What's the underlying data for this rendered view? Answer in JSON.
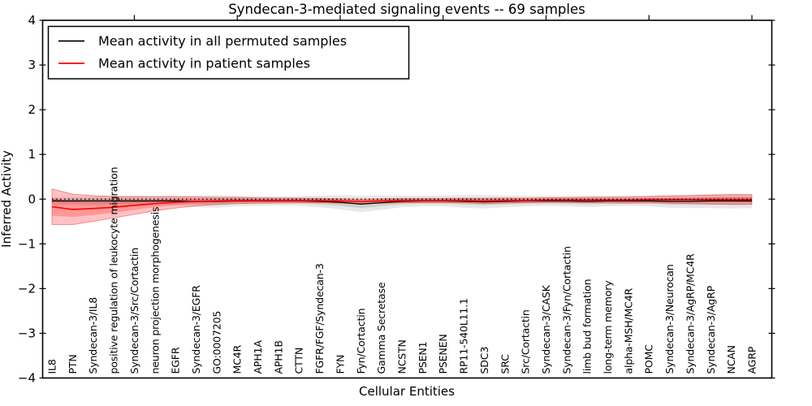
{
  "title": "Syndecan-3-mediated signaling events -- 69 samples",
  "legend": {
    "permuted_label": "Mean activity in all permuted samples",
    "patient_label": "Mean activity in patient samples"
  },
  "axes": {
    "ylabel": "Inferred Activity",
    "xlabel": "Cellular Entities",
    "yticks": [
      4,
      3,
      2,
      1,
      0,
      -1,
      -2,
      -3,
      -4
    ],
    "ylim": [
      -4,
      4
    ],
    "x_tick_indices": [
      4,
      9,
      14,
      19,
      24,
      29,
      34
    ]
  },
  "colors": {
    "patient_line": "#ff0000",
    "permuted_line": "#000000",
    "patient_band_outer": "rgba(255,0,0,0.24)",
    "patient_band_inner": "rgba(255,0,0,0.22)",
    "patient_band_edge": "rgba(225,40,40,0.55)",
    "permuted_band_outer": "rgba(0,0,0,0.09)",
    "permuted_band_inner": "rgba(0,0,0,0.11)",
    "reference_line": "#000000",
    "background": "#ffffff"
  },
  "chart_data": {
    "type": "line",
    "title": "Syndecan-3-mediated signaling events -- 69 samples",
    "xlabel": "Cellular Entities",
    "ylabel": "Inferred Activity",
    "ylim": [
      -4,
      4
    ],
    "grid": false,
    "legend_position": "upper left",
    "reference_line": 0,
    "categories": [
      "IL8",
      "PTN",
      "Syndecan-3/IL8",
      "positive regulation of leukocyte migration",
      "Syndecan-3/Src/Cortactin",
      "neuron projection morphogenesis",
      "EGFR",
      "Syndecan-3/EGFR",
      "GO:0007205",
      "MC4R",
      "APH1A",
      "APH1B",
      "CTTN",
      "FGFR/FGF/Syndecan-3",
      "FYN",
      "Fyn/Cortactin",
      "Gamma Secretase",
      "NCSTN",
      "PSEN1",
      "PSENEN",
      "RP11-540L11.1",
      "SDC3",
      "SRC",
      "Src/Cortactin",
      "Syndecan-3/CASK",
      "Syndecan-3/Fyn/Cortactin",
      "limb bud formation",
      "long-term memory",
      "alpha-MSH/MC4R",
      "POMC",
      "Syndecan-3/Neurocan",
      "Syndecan-3/AgRP/MC4R",
      "Syndecan-3/AgRP",
      "NCAN",
      "AGRP"
    ],
    "series": [
      {
        "name": "Mean activity in all permuted samples",
        "color": "#000000",
        "values": [
          -0.04,
          -0.04,
          -0.04,
          -0.04,
          -0.04,
          -0.04,
          -0.04,
          -0.05,
          -0.05,
          -0.04,
          -0.04,
          -0.04,
          -0.04,
          -0.05,
          -0.07,
          -0.11,
          -0.08,
          -0.05,
          -0.04,
          -0.04,
          -0.05,
          -0.06,
          -0.05,
          -0.04,
          -0.04,
          -0.04,
          -0.05,
          -0.04,
          -0.04,
          -0.04,
          -0.05,
          -0.05,
          -0.04,
          -0.04,
          -0.04
        ],
        "std": [
          0.04,
          0.045,
          0.05,
          0.05,
          0.055,
          0.05,
          0.05,
          0.065,
          0.07,
          0.06,
          0.055,
          0.05,
          0.055,
          0.065,
          0.08,
          0.09,
          0.08,
          0.065,
          0.06,
          0.06,
          0.07,
          0.075,
          0.065,
          0.06,
          0.055,
          0.06,
          0.065,
          0.06,
          0.055,
          0.06,
          0.07,
          0.075,
          0.08,
          0.085,
          0.08
        ]
      },
      {
        "name": "Mean activity in patient samples",
        "color": "#ff0000",
        "values": [
          -0.17,
          -0.23,
          -0.21,
          -0.18,
          -0.14,
          -0.1,
          -0.07,
          -0.05,
          -0.04,
          -0.03,
          -0.03,
          -0.03,
          -0.03,
          -0.03,
          -0.04,
          -0.05,
          -0.04,
          -0.03,
          -0.03,
          -0.03,
          -0.03,
          -0.04,
          -0.03,
          -0.03,
          -0.02,
          -0.02,
          -0.02,
          -0.02,
          -0.02,
          -0.01,
          -0.01,
          -0.01,
          -0.01,
          -0.01,
          -0.01
        ],
        "std": [
          0.2,
          0.17,
          0.145,
          0.12,
          0.1,
          0.08,
          0.065,
          0.05,
          0.04,
          0.035,
          0.03,
          0.028,
          0.026,
          0.025,
          0.025,
          0.025,
          0.025,
          0.024,
          0.024,
          0.024,
          0.026,
          0.03,
          0.028,
          0.026,
          0.026,
          0.028,
          0.03,
          0.032,
          0.035,
          0.035,
          0.04,
          0.045,
          0.05,
          0.055,
          0.055
        ]
      }
    ]
  }
}
